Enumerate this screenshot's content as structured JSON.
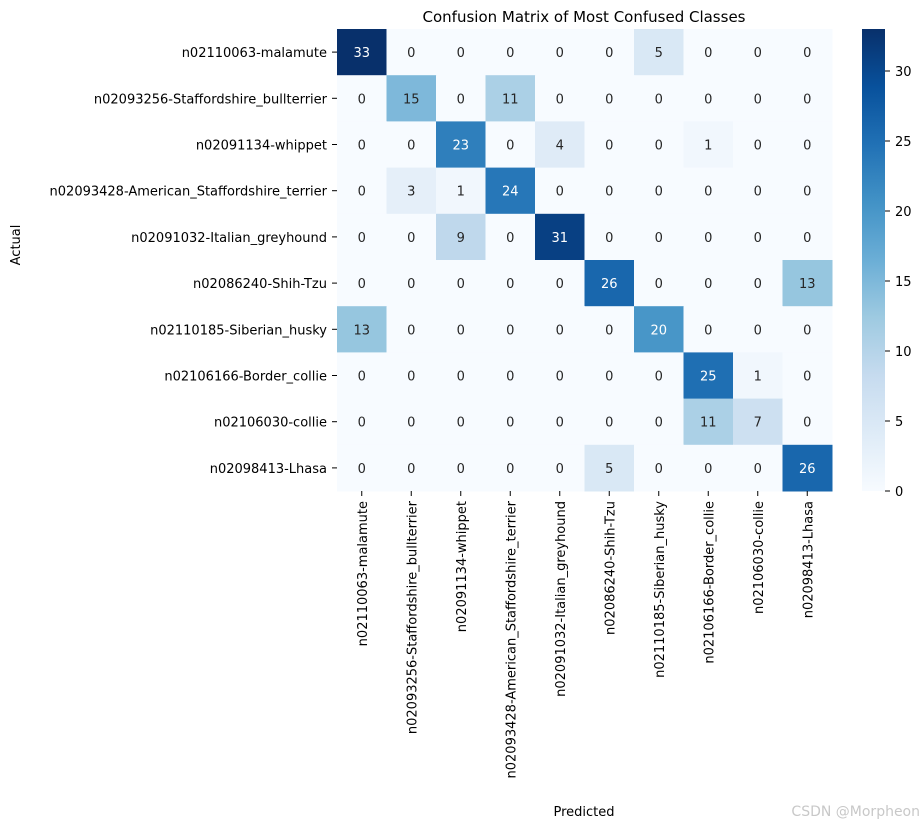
{
  "chart_data": {
    "type": "heatmap",
    "title": "Confusion Matrix of Most Confused Classes",
    "xlabel": "Predicted",
    "ylabel": "Actual",
    "colormap": "Blues",
    "vmin": 0,
    "vmax": 33,
    "colorbar_ticks": [
      0,
      5,
      10,
      15,
      20,
      25,
      30
    ],
    "rows": [
      "n02110063-malamute",
      "n02093256-Staffordshire_bullterrier",
      "n02091134-whippet",
      "n02093428-American_Staffordshire_terrier",
      "n02091032-Italian_greyhound",
      "n02086240-Shih-Tzu",
      "n02110185-Siberian_husky",
      "n02106166-Border_collie",
      "n02106030-collie",
      "n02098413-Lhasa"
    ],
    "columns": [
      "n02110063-malamute",
      "n02093256-Staffordshire_bullterrier",
      "n02091134-whippet",
      "n02093428-American_Staffordshire_terrier",
      "n02091032-Italian_greyhound",
      "n02086240-Shih-Tzu",
      "n02110185-Siberian_husky",
      "n02106166-Border_collie",
      "n02106030-collie",
      "n02098413-Lhasa"
    ],
    "values": [
      [
        33,
        0,
        0,
        0,
        0,
        0,
        5,
        0,
        0,
        0
      ],
      [
        0,
        15,
        0,
        11,
        0,
        0,
        0,
        0,
        0,
        0
      ],
      [
        0,
        0,
        23,
        0,
        4,
        0,
        0,
        1,
        0,
        0
      ],
      [
        0,
        3,
        1,
        24,
        0,
        0,
        0,
        0,
        0,
        0
      ],
      [
        0,
        0,
        9,
        0,
        31,
        0,
        0,
        0,
        0,
        0
      ],
      [
        0,
        0,
        0,
        0,
        0,
        26,
        0,
        0,
        0,
        13
      ],
      [
        13,
        0,
        0,
        0,
        0,
        0,
        20,
        0,
        0,
        0
      ],
      [
        0,
        0,
        0,
        0,
        0,
        0,
        0,
        25,
        1,
        0
      ],
      [
        0,
        0,
        0,
        0,
        0,
        0,
        0,
        11,
        7,
        0
      ],
      [
        0,
        0,
        0,
        0,
        0,
        5,
        0,
        0,
        0,
        26
      ]
    ]
  },
  "watermark": "CSDN @Morpheon"
}
